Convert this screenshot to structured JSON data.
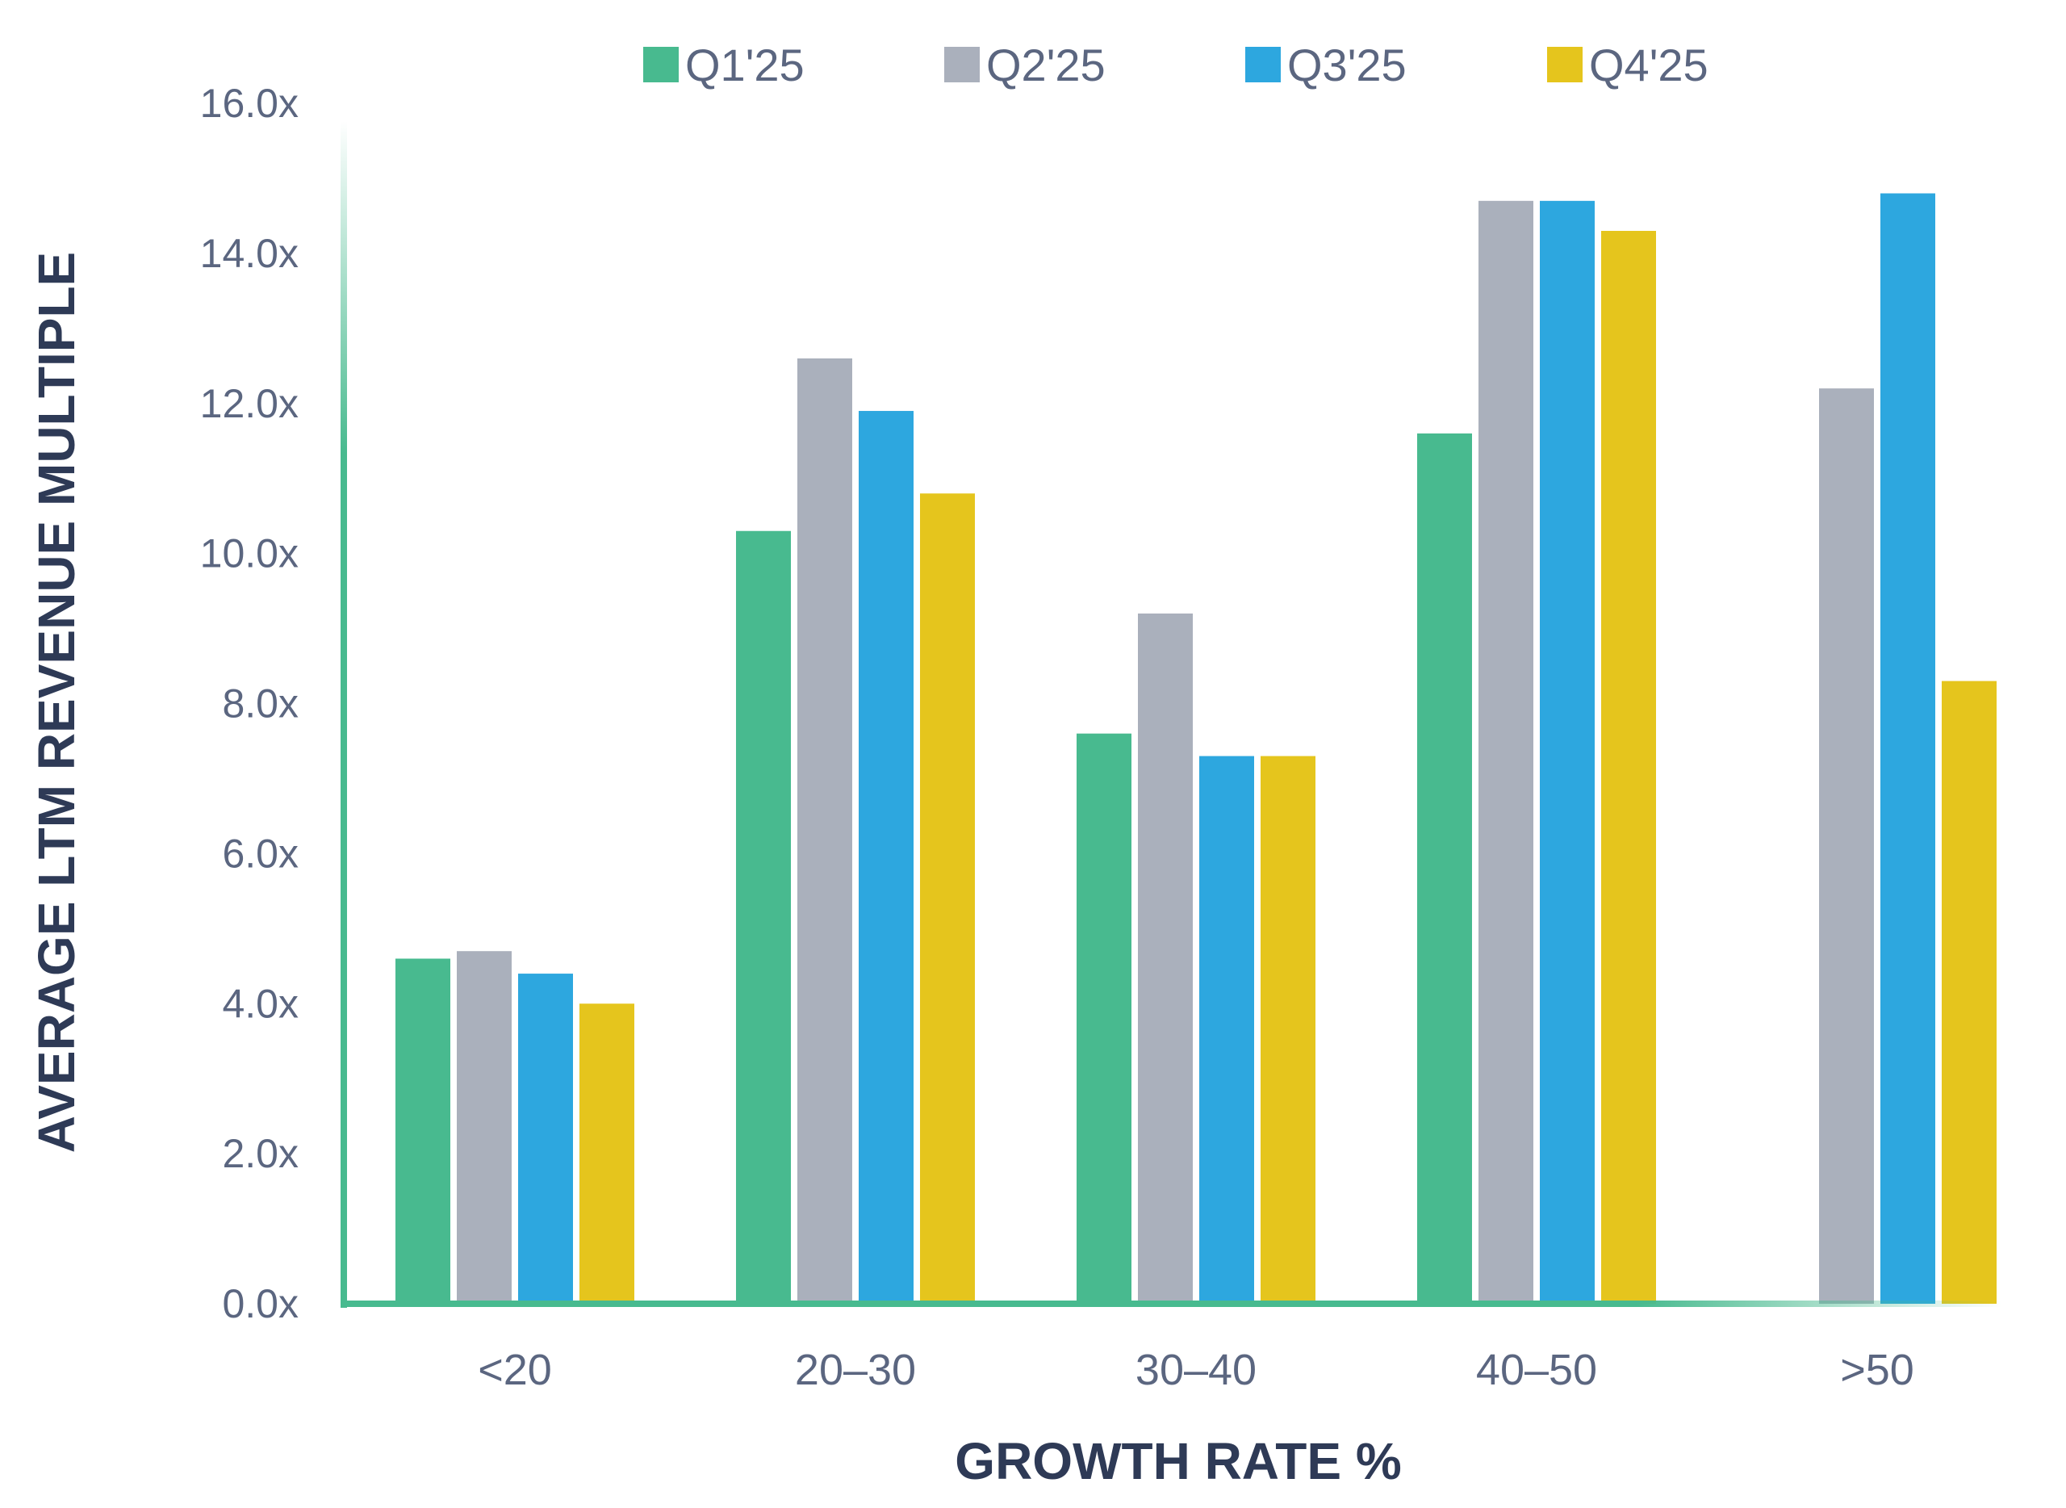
{
  "chart_data": {
    "type": "bar",
    "title": "",
    "xlabel": "GROWTH RATE %",
    "ylabel": "AVERAGE LTM REVENUE MULTIPLE",
    "categories": [
      "<20",
      "20–30",
      "30–40",
      "40–50",
      ">50"
    ],
    "series": [
      {
        "name": "Q1'25",
        "color": "#48ba8f",
        "values": [
          4.6,
          10.3,
          7.6,
          11.6,
          null
        ]
      },
      {
        "name": "Q2'25",
        "color": "#aab0bc",
        "values": [
          4.7,
          12.6,
          9.2,
          14.7,
          12.2
        ]
      },
      {
        "name": "Q3'25",
        "color": "#2da7df",
        "values": [
          4.4,
          11.9,
          7.3,
          14.7,
          14.8
        ]
      },
      {
        "name": "Q4'25",
        "color": "#e5c51d",
        "values": [
          4.0,
          10.8,
          7.3,
          14.3,
          8.3
        ]
      }
    ],
    "ylim": [
      0,
      16
    ],
    "yticks": [
      "0.0x",
      "2.0x",
      "4.0x",
      "6.0x",
      "8.0x",
      "10.0x",
      "12.0x",
      "14.0x",
      "16.0x"
    ],
    "ytick_values": [
      0,
      2,
      4,
      6,
      8,
      10,
      12,
      14,
      16
    ],
    "legend_position": "top-center",
    "grid": false,
    "axis_color": "#48ba8f"
  }
}
